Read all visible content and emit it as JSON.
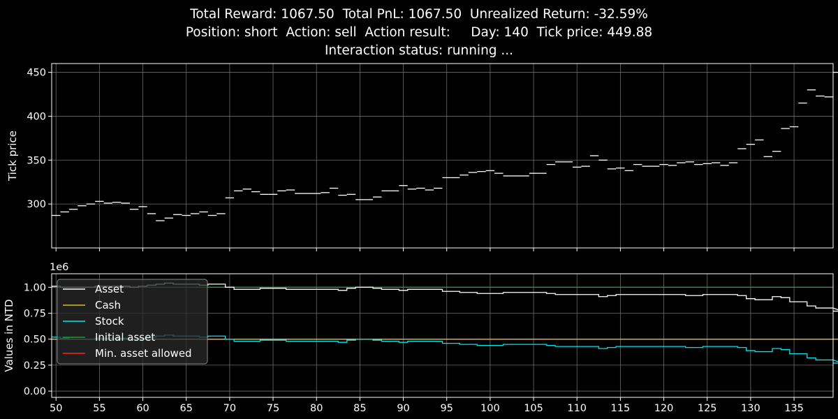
{
  "header": {
    "line1": "Total Reward: 1067.50  Total PnL: 1067.50  Unrealized Return: -32.59%",
    "line2": "Position: short  Action: sell  Action result:     Day: 140  Tick price: 449.88",
    "line3": "Interaction status: running ..."
  },
  "colors": {
    "background": "#000000",
    "price": "#ffffff",
    "asset": "#ffffff",
    "cash": "#d4c12c",
    "stock": "#00e5ee",
    "initial_asset": "#1f9e2e",
    "min_asset": "#ff2020",
    "grid": "#6e6e6e"
  },
  "chart_data": [
    {
      "type": "line",
      "step": true,
      "ylabel": "Tick price",
      "ylim": [
        250,
        460
      ],
      "xlim": [
        49.5,
        139.5
      ],
      "xticks": [
        50,
        55,
        60,
        65,
        70,
        75,
        80,
        85,
        90,
        95,
        100,
        105,
        110,
        115,
        120,
        125,
        130,
        135
      ],
      "yticks": [
        300,
        350,
        400,
        450
      ],
      "grid": true,
      "x_start": 50,
      "series": [
        {
          "values": [
            287,
            291,
            294,
            298,
            300,
            303,
            301,
            302,
            301,
            294,
            297,
            289,
            281,
            284,
            288,
            287,
            289,
            291,
            287,
            289,
            307,
            315,
            317,
            314,
            311,
            311,
            315,
            316,
            312,
            312,
            312,
            313,
            318,
            310,
            311,
            305,
            305,
            308,
            315,
            315,
            321,
            317,
            318,
            316,
            318,
            330,
            330,
            333,
            336,
            337,
            338,
            335,
            332,
            332,
            332,
            335,
            335,
            345,
            348,
            348,
            342,
            343,
            355,
            350,
            340,
            341,
            338,
            345,
            343,
            343,
            345,
            344,
            347,
            348,
            345,
            346,
            347,
            344,
            347,
            363,
            368,
            373,
            354,
            360,
            386,
            388,
            415,
            430,
            423,
            422,
            440,
            450
          ]
        }
      ]
    },
    {
      "type": "line",
      "step": true,
      "ylabel": "Values in NTD",
      "offset_label": "1e6",
      "ylim": [
        -0.06,
        1.13
      ],
      "xlim": [
        49.5,
        139.5
      ],
      "xticks": [
        50,
        55,
        60,
        65,
        70,
        75,
        80,
        85,
        90,
        95,
        100,
        105,
        110,
        115,
        120,
        125,
        130,
        135
      ],
      "xticklabels": [
        "50",
        "55",
        "60",
        "65",
        "70",
        "75",
        "80",
        "85",
        "90",
        "95",
        "100",
        "105",
        "110",
        "115",
        "120",
        "125",
        "130",
        "135"
      ],
      "yticks": [
        0.0,
        0.25,
        0.5,
        0.75,
        1.0
      ],
      "yticklabels": [
        "0.00",
        "0.25",
        "0.50",
        "0.75",
        "1.00"
      ],
      "grid": true,
      "legend_position": "upper-left",
      "x_start": 50,
      "series": [
        {
          "name": "Asset",
          "color_key": "asset",
          "values": [
            1.01,
            1.0,
            1.0,
            1.0,
            1.0,
            1.01,
            1.01,
            1.01,
            1.01,
            1.0,
            1.01,
            1.02,
            1.03,
            1.04,
            1.03,
            1.03,
            1.03,
            1.02,
            1.03,
            1.03,
            1.0,
            0.98,
            0.98,
            0.98,
            0.99,
            0.99,
            0.99,
            0.98,
            0.98,
            0.98,
            0.98,
            0.98,
            0.98,
            0.97,
            0.99,
            1.0,
            1.0,
            0.99,
            0.98,
            0.98,
            0.97,
            0.98,
            0.98,
            0.98,
            0.98,
            0.96,
            0.96,
            0.95,
            0.95,
            0.94,
            0.94,
            0.94,
            0.95,
            0.95,
            0.95,
            0.95,
            0.95,
            0.94,
            0.93,
            0.93,
            0.93,
            0.93,
            0.93,
            0.91,
            0.92,
            0.93,
            0.93,
            0.93,
            0.93,
            0.93,
            0.93,
            0.93,
            0.93,
            0.92,
            0.92,
            0.93,
            0.93,
            0.93,
            0.93,
            0.92,
            0.89,
            0.88,
            0.88,
            0.91,
            0.9,
            0.86,
            0.86,
            0.82,
            0.8,
            0.8,
            0.8,
            0.77
          ]
        },
        {
          "name": "Cash",
          "color_key": "cash",
          "values": [
            0.5,
            0.5,
            0.5,
            0.5,
            0.5,
            0.5,
            0.5,
            0.5,
            0.5,
            0.5,
            0.5,
            0.5,
            0.5,
            0.5,
            0.5,
            0.5,
            0.5,
            0.5,
            0.5,
            0.5,
            0.5,
            0.5,
            0.5,
            0.5,
            0.5,
            0.5,
            0.5,
            0.5,
            0.5,
            0.5,
            0.5,
            0.5,
            0.5,
            0.5,
            0.5,
            0.5,
            0.5,
            0.5,
            0.5,
            0.5,
            0.5,
            0.5,
            0.5,
            0.5,
            0.5,
            0.5,
            0.5,
            0.5,
            0.5,
            0.5,
            0.5,
            0.5,
            0.5,
            0.5,
            0.5,
            0.5,
            0.5,
            0.5,
            0.5,
            0.5,
            0.5,
            0.5,
            0.5,
            0.5,
            0.5,
            0.5,
            0.5,
            0.5,
            0.5,
            0.5,
            0.5,
            0.5,
            0.5,
            0.5,
            0.5,
            0.5,
            0.5,
            0.5,
            0.5,
            0.5,
            0.5,
            0.5,
            0.5,
            0.5,
            0.5,
            0.5,
            0.5,
            0.5,
            0.5,
            0.5,
            0.5,
            0.5
          ]
        },
        {
          "name": "Stock",
          "color_key": "stock",
          "values": [
            0.52,
            0.51,
            0.5,
            0.5,
            0.5,
            0.51,
            0.51,
            0.51,
            0.51,
            0.5,
            0.51,
            0.52,
            0.53,
            0.54,
            0.53,
            0.53,
            0.53,
            0.52,
            0.53,
            0.53,
            0.5,
            0.48,
            0.48,
            0.48,
            0.49,
            0.49,
            0.49,
            0.48,
            0.48,
            0.48,
            0.48,
            0.48,
            0.48,
            0.47,
            0.49,
            0.5,
            0.5,
            0.49,
            0.48,
            0.48,
            0.47,
            0.48,
            0.48,
            0.48,
            0.48,
            0.46,
            0.46,
            0.45,
            0.45,
            0.44,
            0.44,
            0.44,
            0.45,
            0.45,
            0.45,
            0.45,
            0.45,
            0.44,
            0.43,
            0.43,
            0.43,
            0.43,
            0.43,
            0.41,
            0.42,
            0.43,
            0.43,
            0.43,
            0.43,
            0.43,
            0.43,
            0.43,
            0.43,
            0.42,
            0.42,
            0.43,
            0.43,
            0.43,
            0.43,
            0.42,
            0.39,
            0.38,
            0.38,
            0.41,
            0.4,
            0.36,
            0.36,
            0.32,
            0.3,
            0.3,
            0.3,
            0.27
          ]
        },
        {
          "name": "Initial asset",
          "color_key": "initial_asset",
          "constant": 1.0
        },
        {
          "name": "Min. asset allowed",
          "color_key": "min_asset",
          "constant": 0.5
        }
      ]
    }
  ]
}
